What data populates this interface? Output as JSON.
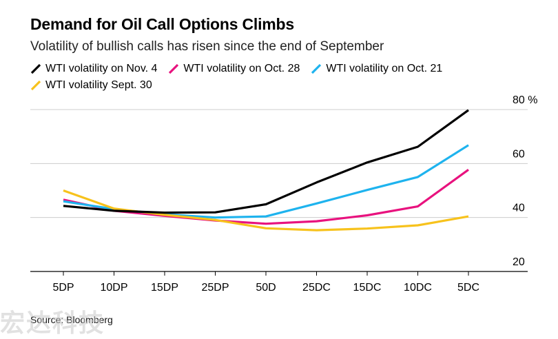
{
  "header": {
    "title": "Demand for Oil Call Options Climbs",
    "subtitle": "Volatility of bullish calls has risen since the end of September"
  },
  "footer": {
    "source": "Source: Bloomberg",
    "watermark": "宏达科技"
  },
  "chart_data": {
    "type": "line",
    "title": "Demand for Oil Call Options Climbs",
    "subtitle": "Volatility of bullish calls has risen since the end of September",
    "categories": [
      "5DP",
      "10DP",
      "15DP",
      "25DP",
      "50D",
      "25DC",
      "15DC",
      "10DC",
      "5DC"
    ],
    "y_ticks": [
      20,
      40,
      60,
      80
    ],
    "y_tick_labels": [
      "20",
      "40",
      "60",
      "80 %"
    ],
    "ylim": [
      20,
      80
    ],
    "grid": true,
    "legend_position": "top-left",
    "series": [
      {
        "name": "WTI volatility on Nov. 4",
        "color": "#000000",
        "values": [
          44.3,
          42.5,
          41.8,
          41.9,
          44.9,
          53.0,
          60.4,
          66.2,
          79.8
        ]
      },
      {
        "name": "WTI volatility on Oct. 28",
        "color": "#e8127e",
        "values": [
          46.6,
          42.5,
          40.6,
          38.9,
          37.7,
          38.6,
          40.8,
          44.1,
          57.7
        ]
      },
      {
        "name": "WTI volatility on Oct. 21",
        "color": "#1eb3ee",
        "values": [
          46.0,
          43.1,
          41.2,
          40.0,
          40.4,
          45.2,
          50.2,
          55.0,
          66.8
        ]
      },
      {
        "name": "WTI volatility Sept. 30",
        "color": "#f7c21c",
        "values": [
          50.0,
          43.3,
          41.0,
          39.1,
          36.0,
          35.3,
          35.9,
          37.1,
          40.4
        ]
      }
    ]
  }
}
